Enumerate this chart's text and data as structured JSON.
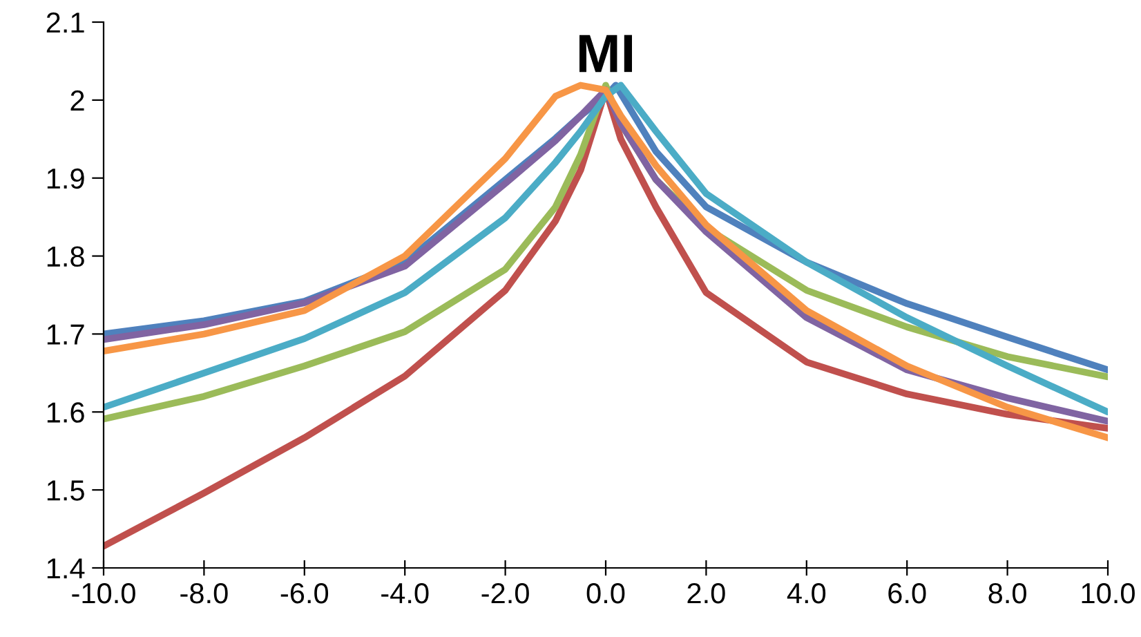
{
  "chart_data": {
    "type": "line",
    "title": "MI",
    "series": [
      {
        "color": "#4f81bd",
        "x": [
          -10,
          -8,
          -6,
          -4,
          -2,
          -1,
          -0.5,
          0,
          0.2,
          1,
          2,
          4,
          6,
          8,
          10
        ],
        "values": [
          1.7,
          1.717,
          1.742,
          1.792,
          1.898,
          1.951,
          1.98,
          2.005,
          2.019,
          1.934,
          1.863,
          1.792,
          1.739,
          1.696,
          1.654
        ]
      },
      {
        "color": "#c0504d",
        "x": [
          -10,
          -8,
          -6,
          -4,
          -2,
          -1,
          -0.5,
          0,
          0.3,
          1,
          2,
          4,
          6,
          8,
          10
        ],
        "values": [
          1.428,
          1.496,
          1.567,
          1.646,
          1.756,
          1.845,
          1.91,
          2.013,
          1.95,
          1.863,
          1.753,
          1.664,
          1.623,
          1.597,
          1.579
        ]
      },
      {
        "color": "#9bbb59",
        "x": [
          -10,
          -8,
          -6,
          -4,
          -2,
          -1,
          -0.5,
          0,
          0.3,
          1,
          2,
          4,
          6,
          8,
          10
        ],
        "values": [
          1.591,
          1.62,
          1.659,
          1.703,
          1.783,
          1.863,
          1.93,
          2.019,
          1.97,
          1.898,
          1.836,
          1.756,
          1.709,
          1.671,
          1.645
        ]
      },
      {
        "color": "#8064a2",
        "x": [
          -10,
          -8,
          -6,
          -4,
          -2,
          -1,
          -0.5,
          0,
          0.3,
          1,
          2,
          4,
          6,
          8,
          10
        ],
        "values": [
          1.693,
          1.712,
          1.74,
          1.787,
          1.893,
          1.948,
          1.98,
          2.013,
          1.97,
          1.898,
          1.831,
          1.721,
          1.654,
          1.618,
          1.588
        ]
      },
      {
        "color": "#4bacc6",
        "x": [
          -10,
          -8,
          -6,
          -4,
          -2,
          -1,
          -0.5,
          0,
          0.3,
          1,
          2,
          4,
          6,
          8,
          10
        ],
        "values": [
          1.606,
          1.65,
          1.694,
          1.753,
          1.849,
          1.92,
          1.96,
          2.005,
          2.019,
          1.96,
          1.88,
          1.792,
          1.721,
          1.659,
          1.6
        ]
      },
      {
        "color": "#f79646",
        "x": [
          -10,
          -8,
          -6,
          -4,
          -2,
          -1,
          -0.5,
          0,
          0.3,
          1,
          2,
          4,
          6,
          8,
          10
        ],
        "values": [
          1.678,
          1.7,
          1.73,
          1.8,
          1.925,
          2.005,
          2.019,
          2.013,
          1.98,
          1.916,
          1.84,
          1.73,
          1.659,
          1.606,
          1.567
        ]
      }
    ],
    "xlim": [
      -10,
      10
    ],
    "xticks": [
      {
        "value": -10,
        "label": "-10.0"
      },
      {
        "value": -8,
        "label": "-8.0"
      },
      {
        "value": -6,
        "label": "-6.0"
      },
      {
        "value": -4,
        "label": "-4.0"
      },
      {
        "value": -2,
        "label": "-2.0"
      },
      {
        "value": 0,
        "label": "0.0"
      },
      {
        "value": 2,
        "label": "2.0"
      },
      {
        "value": 4,
        "label": "4.0"
      },
      {
        "value": 6,
        "label": "6.0"
      },
      {
        "value": 8,
        "label": "8.0"
      },
      {
        "value": 10,
        "label": "10.0"
      }
    ],
    "ylim": [
      1.4,
      2.1
    ],
    "yticks": [
      1.4,
      1.5,
      1.6,
      1.7,
      1.8,
      1.9,
      2,
      2.1
    ],
    "grid": false,
    "legend": false,
    "marker": "none",
    "line_style": "solid"
  }
}
